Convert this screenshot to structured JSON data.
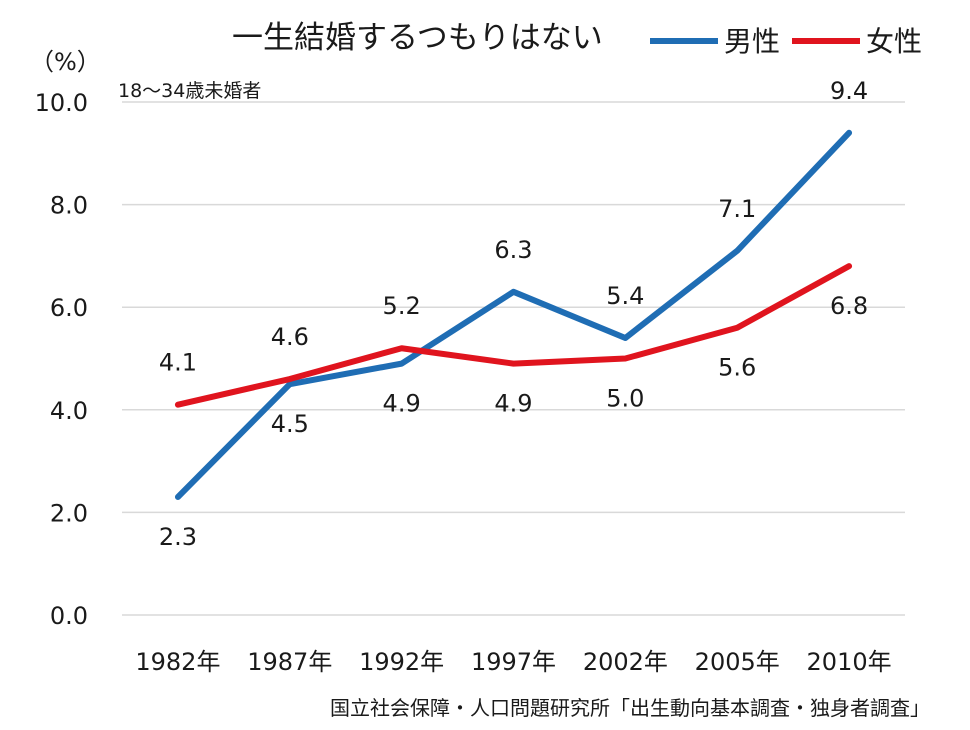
{
  "chart_data": {
    "type": "line",
    "title": "一生結婚するつもりはない",
    "unit": "（%）",
    "subtitle": "18～34歳未婚者",
    "source": "国立社会保障・人口問題研究所「出生動向基本調査・独身者調査」",
    "categories": [
      "1982年",
      "1987年",
      "1992年",
      "1997年",
      "2002年",
      "2005年",
      "2010年"
    ],
    "ylim": [
      0,
      10
    ],
    "yticks": [
      "0.0",
      "2.0",
      "4.0",
      "6.0",
      "8.0",
      "10.0"
    ],
    "grid": true,
    "legend_position": "top-right",
    "series": [
      {
        "name": "男性",
        "color": "#1f6db4",
        "values": [
          2.3,
          4.5,
          4.9,
          6.3,
          5.4,
          7.1,
          9.4
        ]
      },
      {
        "name": "女性",
        "color": "#e0141e",
        "values": [
          4.1,
          4.6,
          5.2,
          4.9,
          5.0,
          5.6,
          6.8
        ]
      }
    ]
  }
}
